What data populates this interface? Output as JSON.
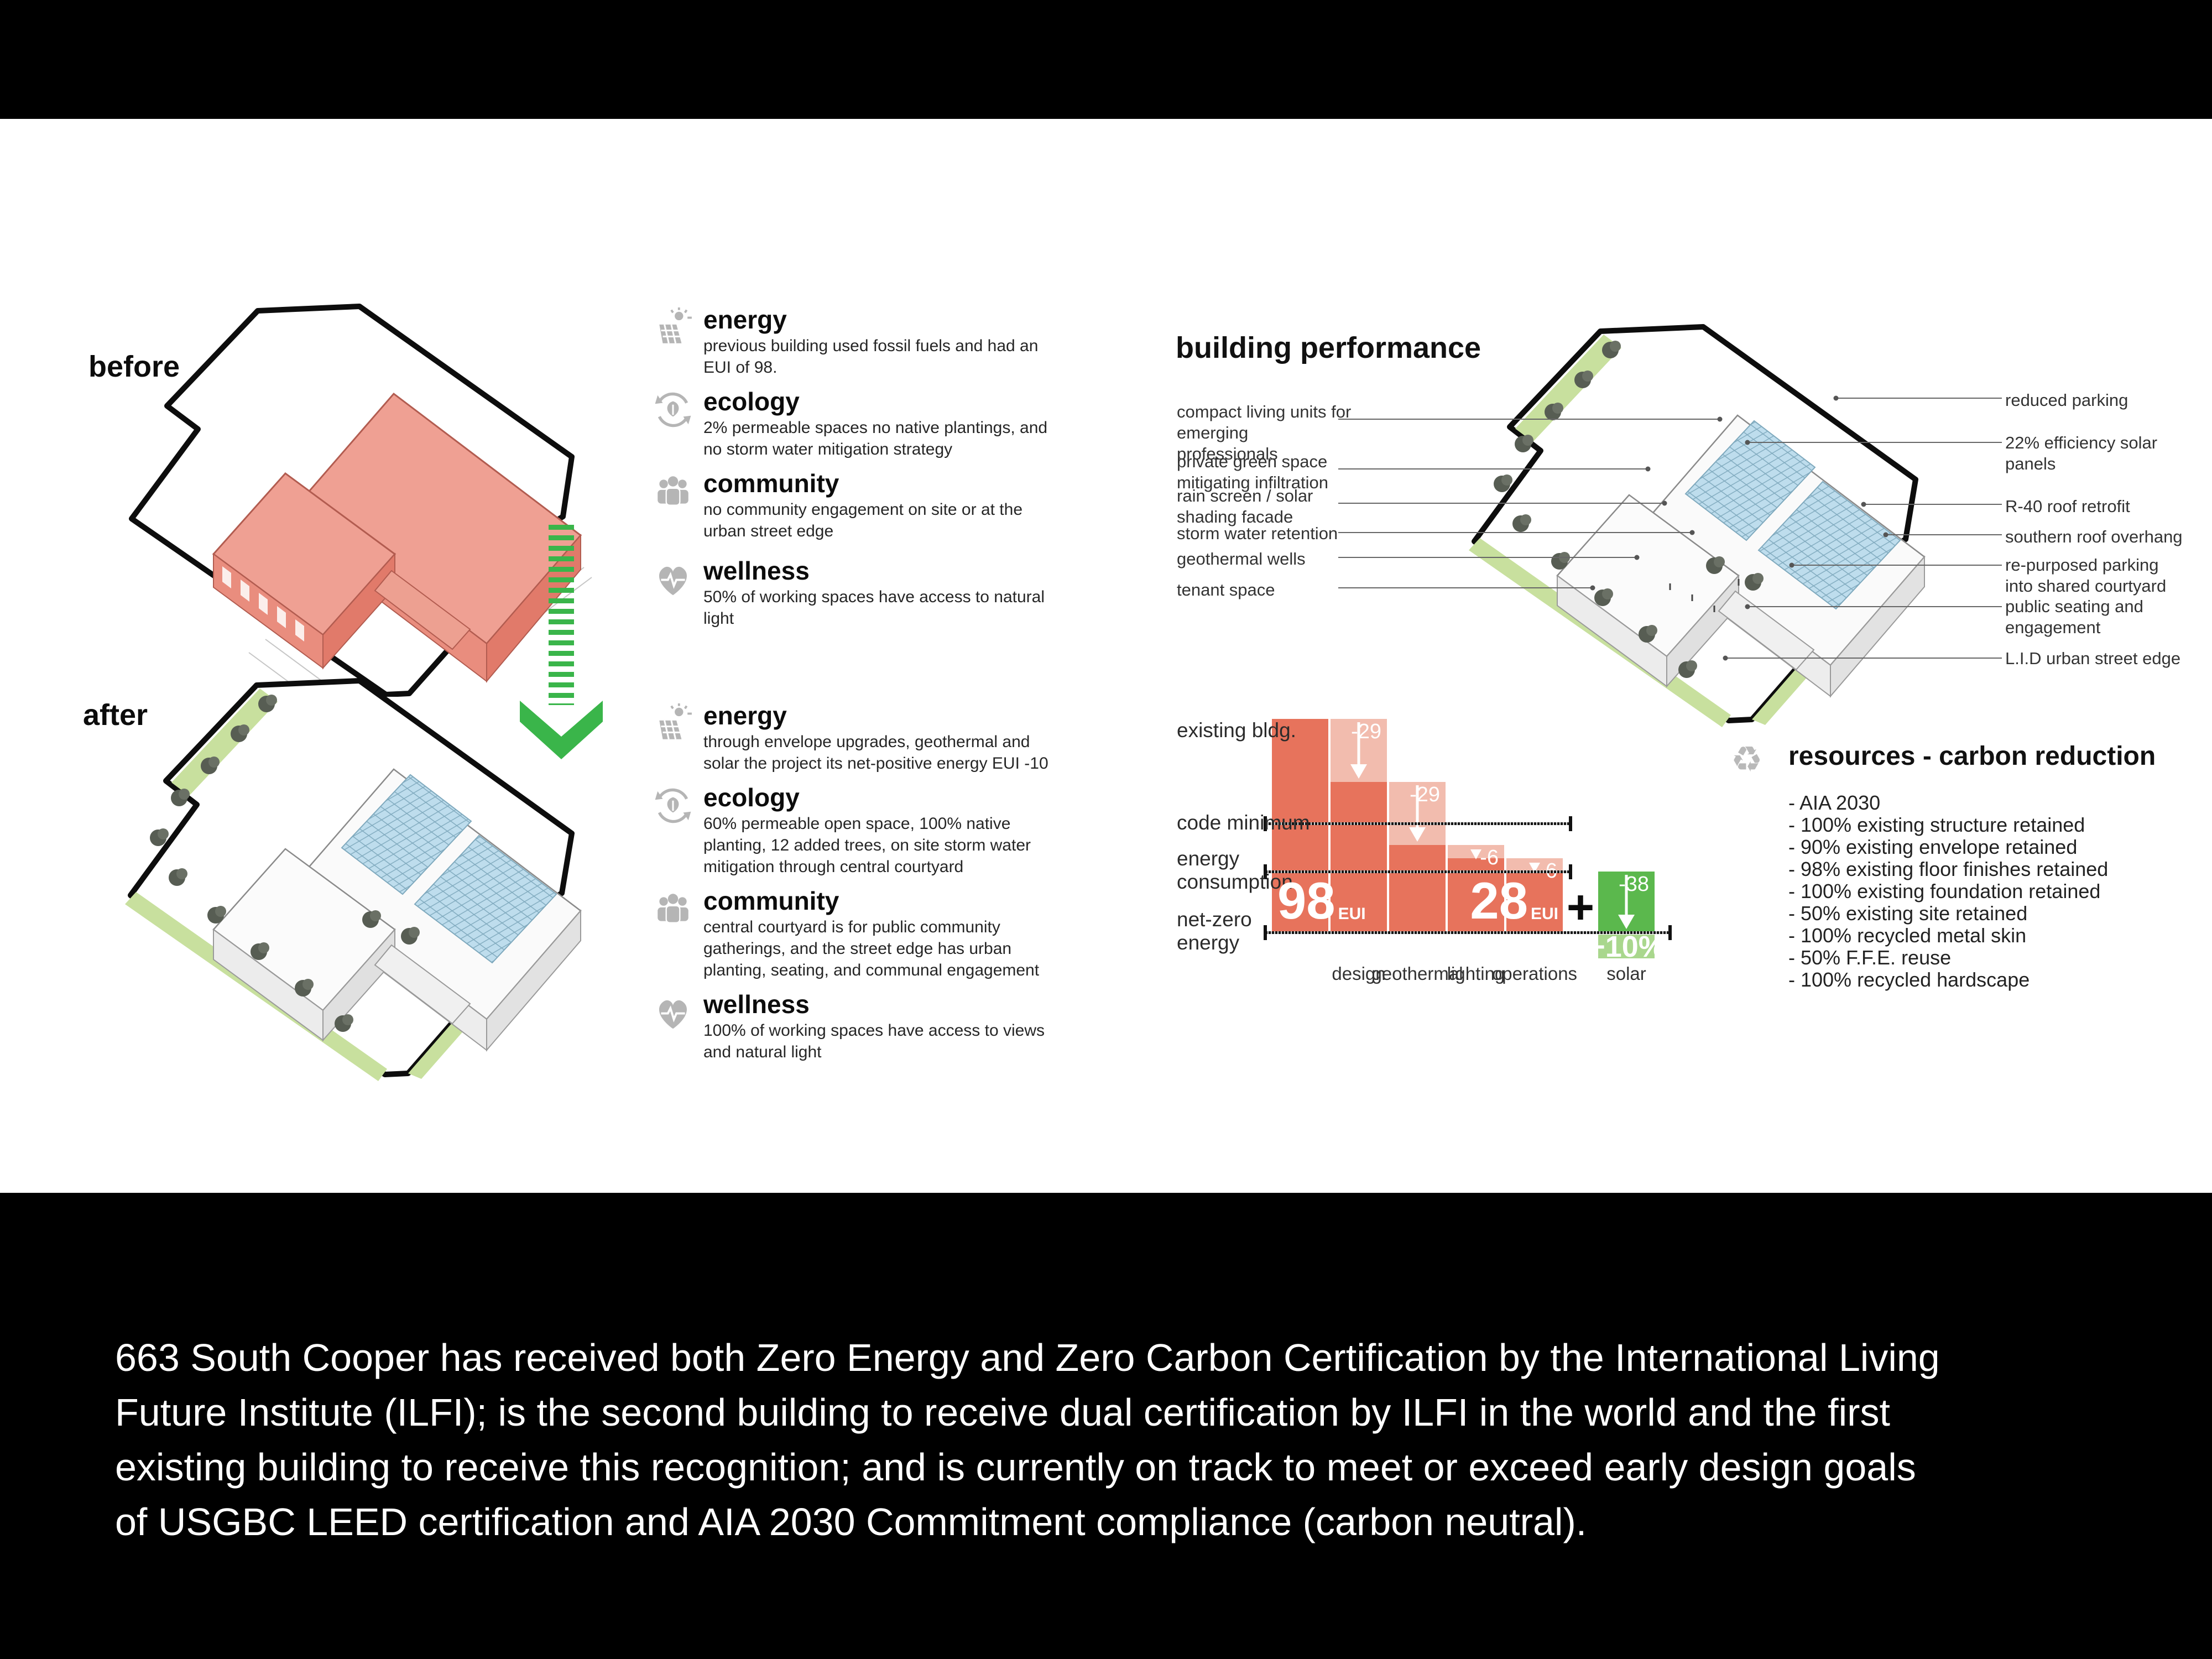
{
  "board": {
    "caption_lines": [
      "663 South Cooper has received both Zero Energy and Zero Carbon Certification by the International Living",
      "Future Institute (ILFI); is the second building to receive dual certification by ILFI in the world and the first",
      "existing building to receive this recognition; and is currently on track to meet or exceed early design goals",
      "of USGBC LEED certification and AIA 2030 Commitment compliance (carbon neutral)."
    ]
  },
  "before": {
    "label": "before",
    "metrics": [
      {
        "icon": "solar-panel-icon",
        "title": "energy",
        "body": "previous building used fossil fuels and had an EUI of 98."
      },
      {
        "icon": "ecology-icon",
        "title": "ecology",
        "body": "2% permeable spaces no native plantings, and no storm water mitigation strategy"
      },
      {
        "icon": "community-icon",
        "title": "community",
        "body": "no community engagement on site or at the urban street edge"
      },
      {
        "icon": "wellness-icon",
        "title": "wellness",
        "body": "50% of working spaces have access to natural light"
      }
    ]
  },
  "after": {
    "label": "after",
    "metrics": [
      {
        "icon": "solar-panel-icon",
        "title": "energy",
        "body": "through envelope upgrades, geothermal and solar the project its net-positive energy EUI -10"
      },
      {
        "icon": "ecology-icon",
        "title": "ecology",
        "body": "60% permeable open space, 100% native planting, 12 added trees, on site storm water mitigation through central courtyard"
      },
      {
        "icon": "community-icon",
        "title": "community",
        "body": "central courtyard is for public community gatherings, and the street edge has urban planting, seating, and communal engagement"
      },
      {
        "icon": "wellness-icon",
        "title": "wellness",
        "body": "100% of working spaces have access to views and natural light"
      }
    ]
  },
  "performance": {
    "title": "building performance",
    "left_labels": [
      "compact living units for emerging professionals",
      "private green space mitigating infiltration",
      "rain screen / solar shading facade",
      "storm water retention",
      "geothermal wells",
      "tenant space"
    ],
    "right_labels": [
      "reduced parking",
      "22% efficiency solar panels",
      "R-40 roof retrofit",
      "southern roof overhang",
      "re-purposed parking into shared courtyard",
      "public seating and engagement",
      "L.I.D urban street edge"
    ]
  },
  "resources": {
    "title": "resources - carbon reduction",
    "items": [
      "- AIA 2030",
      "- 100% existing structure retained",
      "- 90% existing envelope retained",
      "- 98% existing floor finishes retained",
      "- 100% existing foundation retained",
      "- 50% existing site retained",
      "- 100% recycled metal skin",
      "- 50% F.F.E. reuse",
      "- 100% recycled hardscape"
    ]
  },
  "chart_data": {
    "type": "waterfall",
    "unit": "EUI",
    "baseline": {
      "label": "existing bldg.",
      "value": 98
    },
    "steps": [
      {
        "category": "design",
        "delta": -29,
        "delta_label": "-29"
      },
      {
        "category": "geothermal",
        "delta": -29,
        "delta_label": "-29"
      },
      {
        "category": "lighting",
        "delta": -6,
        "delta_label": "-6"
      },
      {
        "category": "operations",
        "delta": -6,
        "delta_label": "-6"
      }
    ],
    "subtotal": {
      "value": 28,
      "label": "28"
    },
    "plus_sign": "+",
    "solar_step": {
      "category": "solar",
      "delta": -38,
      "delta_label": "-38",
      "overshoot_label": "+10%",
      "end_value": -10
    },
    "reference_lines": [
      {
        "label": "existing bldg.",
        "value": 98,
        "line": false,
        "extent": "none"
      },
      {
        "label": "code minimum",
        "value": 50,
        "line": true,
        "extent": "short"
      },
      {
        "label": "energy consumption",
        "value": 28,
        "line": true,
        "extent": "short"
      },
      {
        "label": "net-zero energy",
        "value": 0,
        "line": true,
        "extent": "long"
      }
    ],
    "ylim": [
      -10,
      98
    ],
    "legend": false,
    "colors": {
      "bar": "#e7735c",
      "bar_light": "#f2bcae",
      "solar": "#5bb84d",
      "solar_light": "#a9d78d"
    }
  },
  "colors": {
    "building_before": "#efa095",
    "solar_panel_blue": "#bedded",
    "landscape_green": "#c8e09e",
    "arrow_green": "#3ab54a",
    "icon_gray": "#b5b5b5"
  }
}
